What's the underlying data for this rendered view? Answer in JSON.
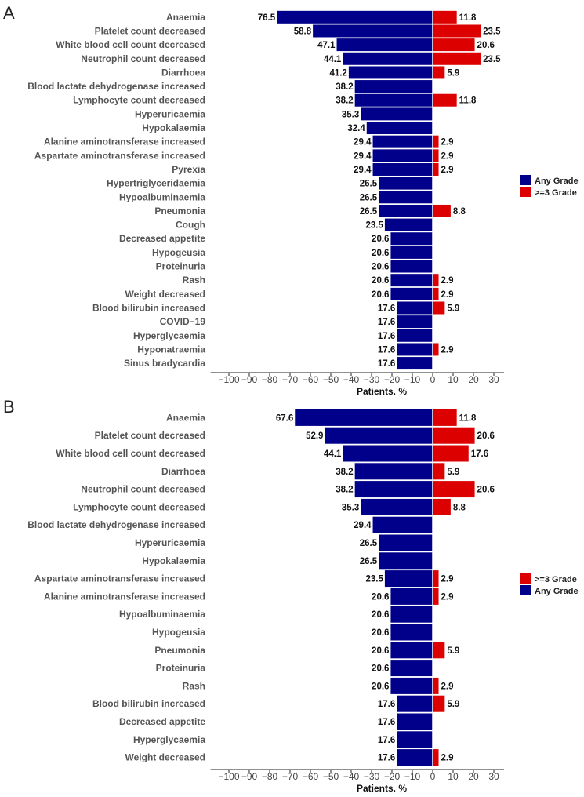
{
  "chart_data": [
    {
      "type": "bar",
      "panel": "A",
      "orientation": "horizontal-diverging",
      "xlabel": "Patients. %",
      "xlim": [
        -110,
        35
      ],
      "xticks": [
        -100,
        -90,
        -80,
        -70,
        -60,
        -50,
        -40,
        -30,
        -20,
        -10,
        0,
        10,
        20,
        30
      ],
      "xtick_labels": [
        "−100",
        "−90",
        "−80",
        "−70",
        "−60",
        "−50",
        "−40",
        "−30",
        "−20",
        "−10",
        "0",
        "10",
        "20",
        "30"
      ],
      "legend": [
        "Any Grade",
        ">=3 Grade"
      ],
      "legend_position": "right",
      "categories": [
        "Anaemia",
        "Platelet count decreased",
        "White blood cell count decreased",
        "Neutrophil count decreased",
        "Diarrhoea",
        "Blood lactate dehydrogenase increased",
        "Lymphocyte count decreased",
        "Hyperuricaemia",
        "Hypokalaemia",
        "Alanine aminotransferase increased",
        "Aspartate aminotransferase increased",
        "Pyrexia",
        "Hypertriglyceridaemia",
        "Hypoalbuminaemia",
        "Pneumonia",
        "Cough",
        "Decreased appetite",
        "Hypogeusia",
        "Proteinuria",
        "Rash",
        "Weight decreased",
        "Blood bilirubin increased",
        "COVID−19",
        "Hyperglycaemia",
        "Hyponatraemia",
        "Sinus bradycardia"
      ],
      "series": [
        {
          "name": "Any Grade",
          "color": "#00008B",
          "values": [
            76.5,
            58.8,
            47.1,
            44.1,
            41.2,
            38.2,
            38.2,
            35.3,
            32.4,
            29.4,
            29.4,
            29.4,
            26.5,
            26.5,
            26.5,
            23.5,
            20.6,
            20.6,
            20.6,
            20.6,
            20.6,
            17.6,
            17.6,
            17.6,
            17.6,
            17.6
          ]
        },
        {
          "name": ">=3 Grade",
          "color": "#DD0000",
          "values": [
            11.8,
            23.5,
            20.6,
            23.5,
            5.9,
            null,
            11.8,
            null,
            null,
            2.9,
            2.9,
            2.9,
            null,
            null,
            8.8,
            null,
            null,
            null,
            null,
            2.9,
            2.9,
            5.9,
            null,
            null,
            2.9,
            null
          ]
        }
      ]
    },
    {
      "type": "bar",
      "panel": "B",
      "orientation": "horizontal-diverging",
      "xlabel": "Patients. %",
      "xlim": [
        -110,
        35
      ],
      "xticks": [
        -100,
        -90,
        -80,
        -70,
        -60,
        -50,
        -40,
        -30,
        -20,
        -10,
        0,
        10,
        20,
        30
      ],
      "xtick_labels": [
        "−100",
        "−90",
        "−80",
        "−70",
        "−60",
        "−50",
        "−40",
        "−30",
        "−20",
        "−10",
        "0",
        "10",
        "20",
        "30"
      ],
      "legend": [
        ">=3 Grade",
        "Any Grade"
      ],
      "legend_position": "right",
      "categories": [
        "Anaemia",
        "Platelet count decreased",
        "White blood cell count decreased",
        "Diarrhoea",
        "Neutrophil count decreased",
        "Lymphocyte count decreased",
        "Blood lactate dehydrogenase increased",
        "Hyperuricaemia",
        "Hypokalaemia",
        "Aspartate aminotransferase increased",
        "Alanine aminotransferase increased",
        "Hypoalbuminaemia",
        "Hypogeusia",
        "Pneumonia",
        "Proteinuria",
        "Rash",
        "Blood bilirubin increased",
        "Decreased appetite",
        "Hyperglycaemia",
        "Weight decreased"
      ],
      "series": [
        {
          "name": "Any Grade",
          "color": "#00008B",
          "values": [
            67.6,
            52.9,
            44.1,
            38.2,
            38.2,
            35.3,
            29.4,
            26.5,
            26.5,
            23.5,
            20.6,
            20.6,
            20.6,
            20.6,
            20.6,
            20.6,
            17.6,
            17.6,
            17.6,
            17.6
          ]
        },
        {
          "name": ">=3 Grade",
          "color": "#DD0000",
          "values": [
            11.8,
            20.6,
            17.6,
            5.9,
            20.6,
            8.8,
            null,
            null,
            null,
            2.9,
            2.9,
            null,
            null,
            5.9,
            null,
            2.9,
            5.9,
            null,
            null,
            2.9
          ]
        }
      ]
    }
  ]
}
